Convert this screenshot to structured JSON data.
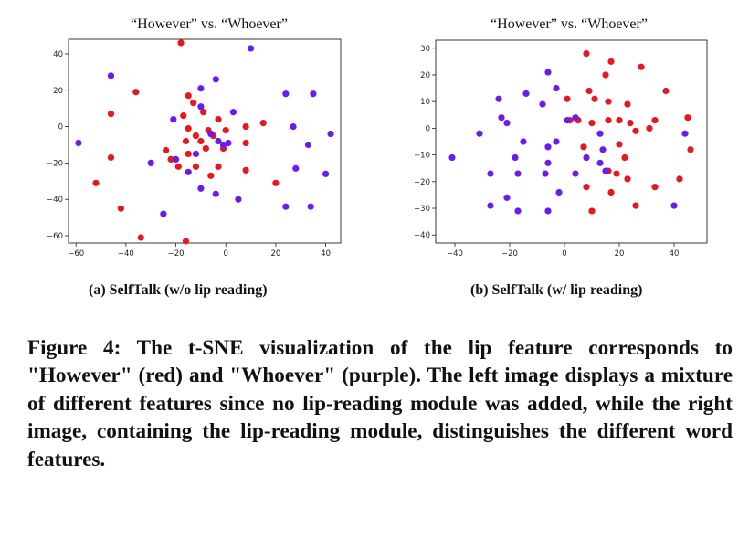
{
  "chart_data": [
    {
      "type": "scatter",
      "title": "“However” vs. “Whoever”",
      "subcaption": "(a) SelfTalk (w/o lip reading)",
      "xlim": [
        -63,
        46
      ],
      "ylim": [
        -64,
        48
      ],
      "xticks": [
        -60,
        -40,
        -20,
        0,
        20,
        40
      ],
      "yticks": [
        -60,
        -40,
        -20,
        0,
        20,
        40
      ],
      "xtick_labels": [
        "−60",
        "−40",
        "−20",
        "0",
        "20",
        "40"
      ],
      "ytick_labels": [
        "−60",
        "−40",
        "−20",
        "0",
        "20",
        "40"
      ],
      "grid": false,
      "series": [
        {
          "color": "#e8161d",
          "points": [
            [
              -18,
              46
            ],
            [
              -36,
              19
            ],
            [
              -46,
              7
            ],
            [
              -15,
              17
            ],
            [
              -46,
              -17
            ],
            [
              -52,
              -31
            ],
            [
              -42,
              -45
            ],
            [
              -34,
              -61
            ],
            [
              -16,
              -63
            ],
            [
              -13,
              13
            ],
            [
              -9,
              8
            ],
            [
              -17,
              6
            ],
            [
              -15,
              -1
            ],
            [
              -3,
              4
            ],
            [
              -7,
              -2
            ],
            [
              -12,
              -5
            ],
            [
              -5,
              -5
            ],
            [
              -10,
              -8
            ],
            [
              -16,
              -8
            ],
            [
              -8,
              -12
            ],
            [
              -1,
              -12
            ],
            [
              -24,
              -13
            ],
            [
              -15,
              -15
            ],
            [
              -22,
              -18
            ],
            [
              -19,
              -22
            ],
            [
              -12,
              -22
            ],
            [
              -3,
              -22
            ],
            [
              -6,
              -27
            ],
            [
              0,
              -2
            ],
            [
              8,
              0
            ],
            [
              15,
              2
            ],
            [
              8,
              -9
            ],
            [
              8,
              -24
            ],
            [
              20,
              -31
            ]
          ]
        },
        {
          "color": "#6a1bf0",
          "points": [
            [
              10,
              43
            ],
            [
              -59,
              -9
            ],
            [
              -46,
              28
            ],
            [
              -4,
              26
            ],
            [
              -10,
              21
            ],
            [
              -10,
              11
            ],
            [
              -21,
              4
            ],
            [
              3,
              8
            ],
            [
              1,
              -9
            ],
            [
              -1,
              -10
            ],
            [
              -3,
              -8
            ],
            [
              -6,
              -4
            ],
            [
              -12,
              -15
            ],
            [
              -15,
              -25
            ],
            [
              -20,
              -18
            ],
            [
              -30,
              -20
            ],
            [
              -25,
              -48
            ],
            [
              -10,
              -34
            ],
            [
              -4,
              -37
            ],
            [
              5,
              -40
            ],
            [
              24,
              18
            ],
            [
              35,
              18
            ],
            [
              27,
              0
            ],
            [
              33,
              -10
            ],
            [
              42,
              -4
            ],
            [
              28,
              -23
            ],
            [
              40,
              -26
            ],
            [
              24,
              -44
            ],
            [
              34,
              -44
            ]
          ]
        }
      ]
    },
    {
      "type": "scatter",
      "title": "“However” vs. “Whoever”",
      "subcaption": "(b) SelfTalk (w/ lip reading)",
      "xlim": [
        -47,
        52
      ],
      "ylim": [
        -43,
        33
      ],
      "xticks": [
        -40,
        -20,
        0,
        20,
        40
      ],
      "yticks": [
        -40,
        -30,
        -20,
        -10,
        0,
        10,
        20,
        30
      ],
      "xtick_labels": [
        "−40",
        "−20",
        "0",
        "20",
        "40"
      ],
      "ytick_labels": [
        "−40",
        "−30",
        "−20",
        "−10",
        "0",
        "10",
        "20",
        "30"
      ],
      "grid": false,
      "series": [
        {
          "color": "#e8161d",
          "points": [
            [
              8,
              28
            ],
            [
              17,
              25
            ],
            [
              28,
              23
            ],
            [
              15,
              20
            ],
            [
              37,
              14
            ],
            [
              9,
              14
            ],
            [
              1,
              11
            ],
            [
              11,
              11
            ],
            [
              16,
              10
            ],
            [
              23,
              9
            ],
            [
              2,
              3
            ],
            [
              5,
              3
            ],
            [
              10,
              2
            ],
            [
              16,
              3
            ],
            [
              20,
              3
            ],
            [
              24,
              2
            ],
            [
              33,
              3
            ],
            [
              45,
              4
            ],
            [
              31,
              0
            ],
            [
              26,
              -1
            ],
            [
              7,
              -7
            ],
            [
              20,
              -6
            ],
            [
              46,
              -8
            ],
            [
              22,
              -11
            ],
            [
              16,
              -16
            ],
            [
              19,
              -17
            ],
            [
              23,
              -19
            ],
            [
              8,
              -22
            ],
            [
              17,
              -24
            ],
            [
              33,
              -22
            ],
            [
              42,
              -19
            ],
            [
              10,
              -31
            ],
            [
              26,
              -29
            ]
          ]
        },
        {
          "color": "#6a1bf0",
          "points": [
            [
              -6,
              21
            ],
            [
              -14,
              13
            ],
            [
              -3,
              15
            ],
            [
              -24,
              11
            ],
            [
              -8,
              9
            ],
            [
              -23,
              4
            ],
            [
              -21,
              2
            ],
            [
              -31,
              -2
            ],
            [
              -15,
              -5
            ],
            [
              4,
              4
            ],
            [
              -3,
              -5
            ],
            [
              1,
              3
            ],
            [
              -6,
              -7
            ],
            [
              -18,
              -11
            ],
            [
              -6,
              -13
            ],
            [
              8,
              -11
            ],
            [
              14,
              -8
            ],
            [
              13,
              -13
            ],
            [
              15,
              -16
            ],
            [
              -41,
              -11
            ],
            [
              -27,
              -17
            ],
            [
              -17,
              -17
            ],
            [
              -7,
              -17
            ],
            [
              4,
              -17
            ],
            [
              -2,
              -24
            ],
            [
              -21,
              -26
            ],
            [
              -27,
              -29
            ],
            [
              -17,
              -31
            ],
            [
              -6,
              -31
            ],
            [
              40,
              -29
            ],
            [
              44,
              -2
            ],
            [
              13,
              -2
            ]
          ]
        }
      ]
    }
  ],
  "caption": "Figure 4: The t-SNE visualization of the lip feature corresponds to \"However\" (red) and \"Whoever\" (purple). The left image displays a mixture of different features since no lip-reading module was added, while the right image, containing the lip-reading module, distinguishes the different word features."
}
